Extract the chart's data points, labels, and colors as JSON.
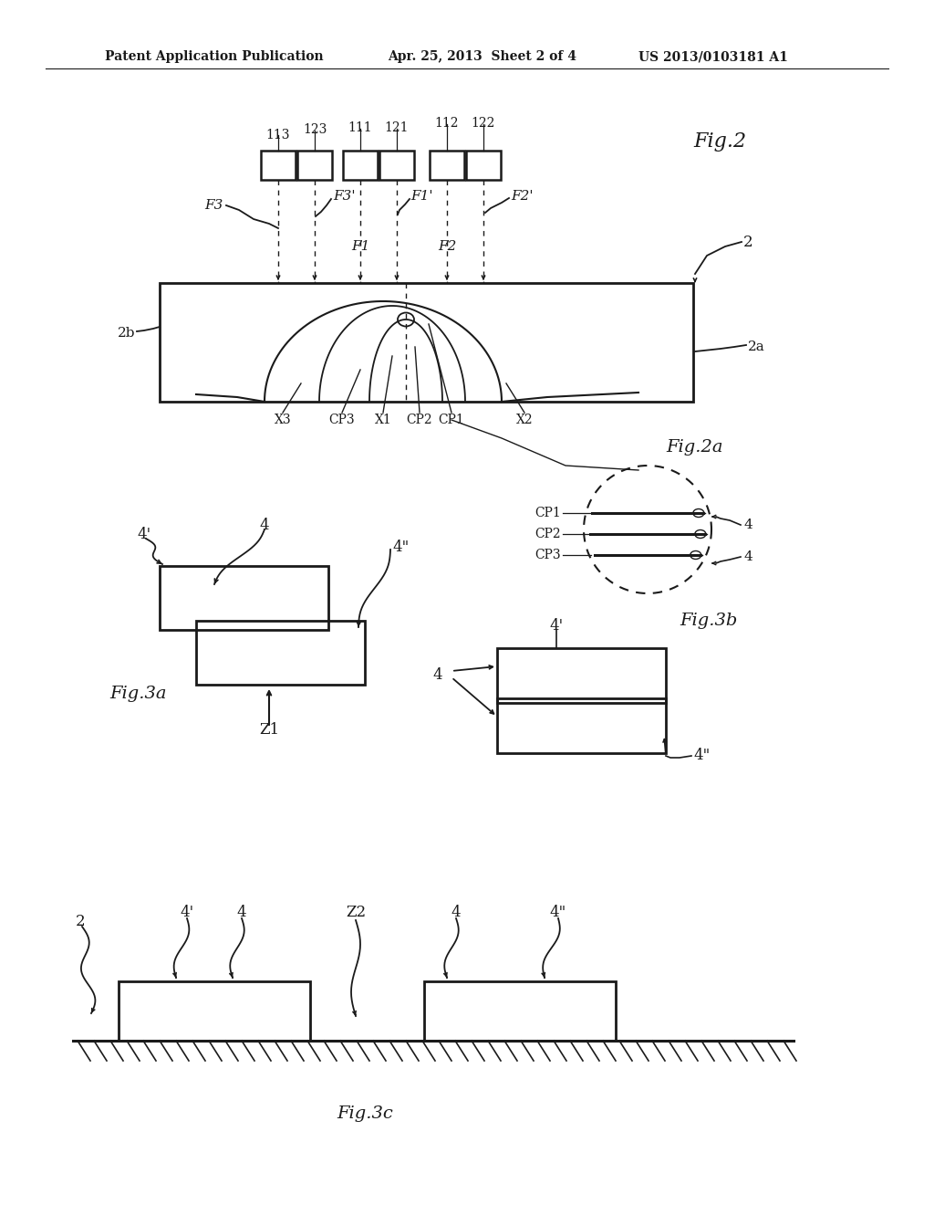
{
  "bg_color": "#ffffff",
  "line_color": "#1a1a1a",
  "header_left": "Patent Application Publication",
  "header_mid": "Apr. 25, 2013  Sheet 2 of 4",
  "header_right": "US 2013/0103181 A1"
}
